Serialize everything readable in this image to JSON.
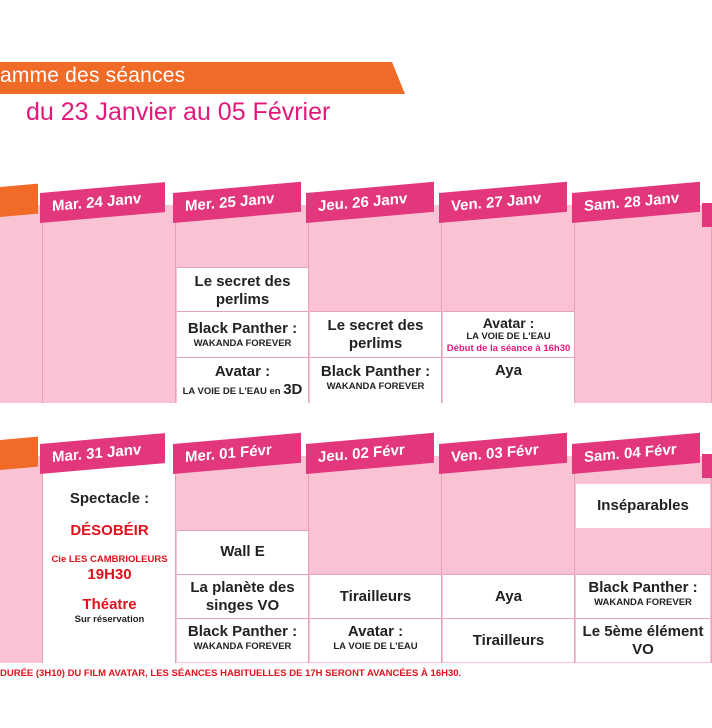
{
  "header": {
    "title": "amme des séances",
    "subtitle": "du 23 Janvier au 05 Février"
  },
  "week1": {
    "days": [
      "Mar. 24 Janv",
      "Mer. 25 Janv",
      "Jeu. 26 Janv",
      "Ven. 27 Janv",
      "Sam. 28 Janv"
    ],
    "wed": {
      "f1": "Le secret des perlims",
      "f2a": "Black Panther :",
      "f2b": "WAKANDA FOREVER",
      "f3a": "Avatar :",
      "f3b": "LA VOIE DE L'EAU en",
      "f3c": "3D"
    },
    "thu": {
      "f1": "Le secret des perlims",
      "f2a": "Black Panther :",
      "f2b": "WAKANDA FOREVER"
    },
    "fri": {
      "f1a": "Avatar :",
      "f1b": "LA VOIE DE L'EAU",
      "f1c": "Début de la séance à 16h30",
      "f2": "Aya"
    }
  },
  "week2": {
    "days": [
      "Mar. 31 Janv",
      "Mer. 01 Févr",
      "Jeu. 02 Févr",
      "Ven. 03 Févr",
      "Sam. 04 Févr"
    ],
    "tue": {
      "a": "Spectacle :",
      "b": "DÉSOBÉIR",
      "c": "Cie LES CAMBRIOLEURS",
      "d": "19H30",
      "e": "Théatre",
      "f": "Sur réservation"
    },
    "wed": {
      "f1": "Wall E",
      "f2": "La planète des singes VO",
      "f3a": "Black Panther :",
      "f3b": "WAKANDA FOREVER"
    },
    "thu": {
      "f1": "Tirailleurs",
      "f2a": "Avatar :",
      "f2b": "LA VOIE DE L'EAU"
    },
    "fri": {
      "f1": "Aya",
      "f2": "Tirailleurs"
    },
    "sat": {
      "f1": "Inséparables",
      "f2a": "Black Panther :",
      "f2b": "WAKANDA FOREVER",
      "f3a": "Le 5ème élément",
      "f3b": "VO"
    }
  },
  "footer": "DURÉE (3H10) DU FILM AVATAR, LES SÉANCES HABITUELLES DE 17H SERONT AVANCÉES À 16H30.",
  "colors": {
    "orange": "#f06a28",
    "pink": "#e2367d",
    "cellPink": "#f9c3d4",
    "red": "#e0121b"
  }
}
